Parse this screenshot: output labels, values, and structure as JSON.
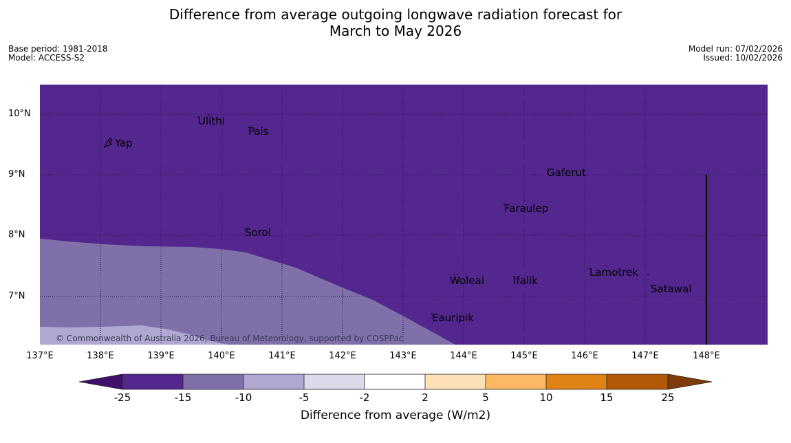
{
  "title": {
    "line1": "Difference from average outgoing longwave radiation forecast for",
    "line2": "March to May 2026"
  },
  "meta": {
    "base_period": "Base period: 1981-2018",
    "model": "Model: ACCESS-S2",
    "model_run": "Model run: 07/02/2026",
    "issued": "Issued: 10/02/2026"
  },
  "map": {
    "lat_labels": [
      "10°N",
      "9°N",
      "8°N",
      "7°N"
    ],
    "lon_labels": [
      "137°E",
      "138°E",
      "139°E",
      "140°E",
      "141°E",
      "142°E",
      "143°E",
      "144°E",
      "145°E",
      "146°E",
      "147°E",
      "148°E"
    ],
    "places": [
      "Yap",
      "Ulithi",
      "Pais",
      "Gaferut",
      "Faraulep",
      "Sorol",
      "Woleai",
      "Ifalik",
      "Lamotrek",
      "Satawal",
      "Eauripik"
    ],
    "copyright": "© Commonwealth of Australia 2026, Bureau of Meteorology, supported by COSPPac",
    "colors": {
      "below_25": "#3f0f6b",
      "m25_m15": "#54278f",
      "m15_m10": "#8070aa",
      "m10_m5": "#b0a8d2",
      "m5_m2": "#dadaeb",
      "m2_2": "#ffffff",
      "p2_p5": "#fee0b6",
      "p5_p10": "#fdb863",
      "p10_p15": "#e08214",
      "p15_p25": "#b35806",
      "above_25": "#7f3b08"
    }
  },
  "colorbar": {
    "ticks": [
      "-25",
      "-15",
      "-10",
      "-5",
      "-2",
      "2",
      "5",
      "10",
      "15",
      "25"
    ],
    "label": "Difference from average (W/m2)"
  }
}
